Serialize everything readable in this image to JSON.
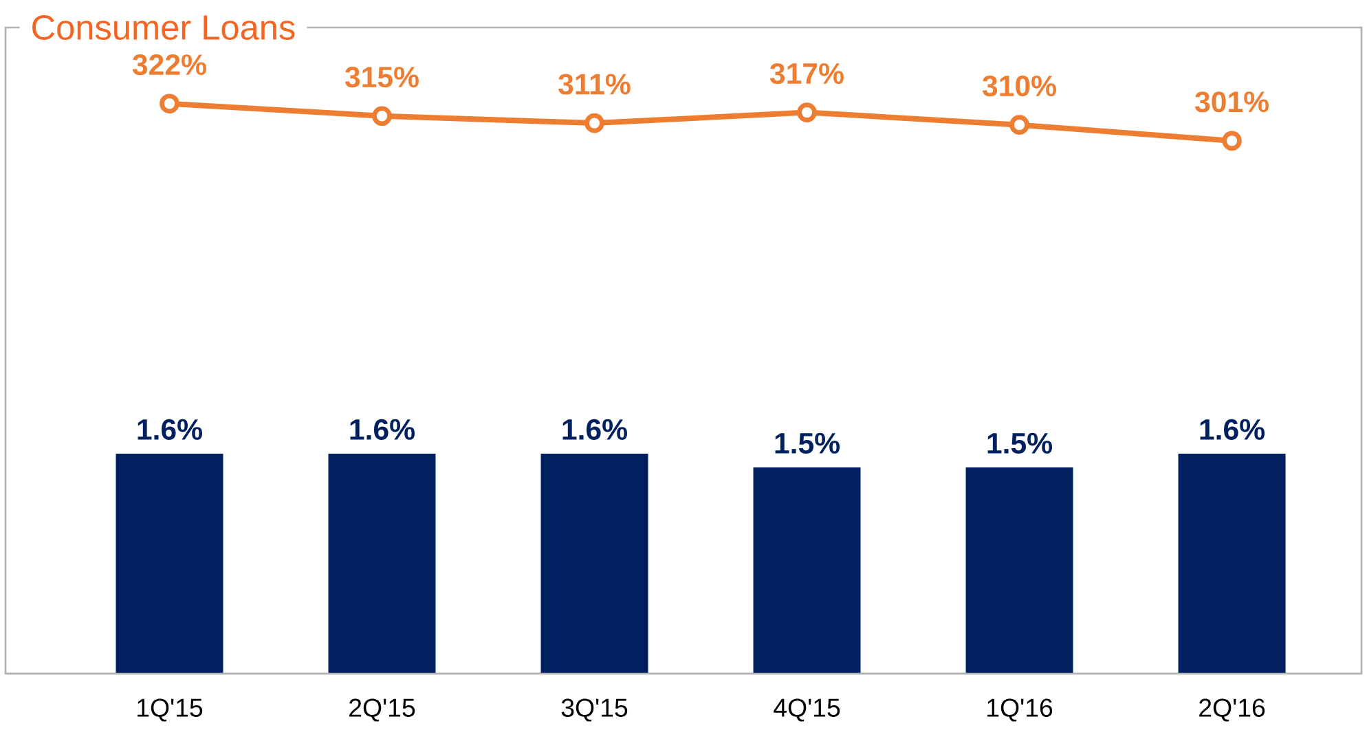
{
  "chart_data": {
    "type": "bar",
    "title": "Consumer Loans",
    "categories": [
      "1Q'15",
      "2Q'15",
      "3Q'15",
      "4Q'15",
      "1Q'16",
      "2Q'16"
    ],
    "series": [
      {
        "color": "#002060",
        "values": [
          1.6,
          1.6,
          1.6,
          1.5,
          1.5,
          1.6
        ],
        "value_labels": [
          "1.6%",
          "1.6%",
          "1.6%",
          "1.5%",
          "1.5%",
          "1.6%"
        ]
      },
      {
        "type": "line",
        "axis": "y2",
        "color": "#ED7D31",
        "marker": "circle",
        "values": [
          322,
          315,
          311,
          317,
          310,
          301
        ],
        "value_labels": [
          "322%",
          "315%",
          "311%",
          "317%",
          "310%",
          "301%"
        ]
      }
    ],
    "ylim": [
      0,
      4.7
    ],
    "y2lim": [
      0,
      365
    ],
    "tick_labels": "x"
  }
}
